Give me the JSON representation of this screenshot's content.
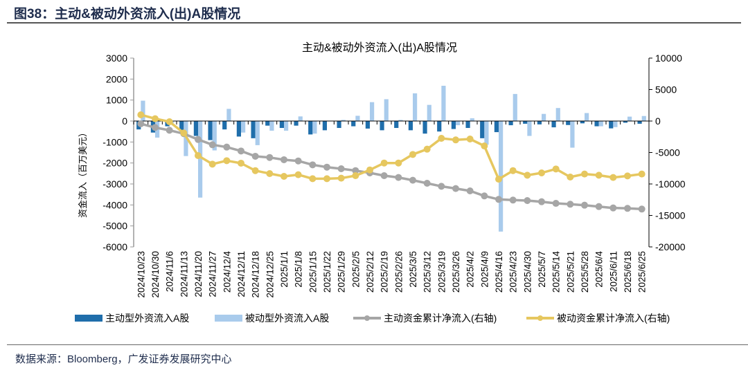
{
  "figure": {
    "label": "图38：主动&被动外资流入(出)A股情况",
    "source": "数据来源：Bloomberg，广发证券发展研究中心"
  },
  "chart_data": {
    "type": "bar+line",
    "title": "主动&被动外资流入(出)A股情况",
    "ylabel": "资金流入（百万美元）",
    "ylim": [
      -6000,
      3000
    ],
    "yticks": [
      3000,
      2000,
      1000,
      0,
      -1000,
      -2000,
      -3000,
      -4000,
      -5000,
      -6000
    ],
    "y2lim": [
      -20000,
      10000
    ],
    "y2ticks": [
      10000,
      5000,
      0,
      -5000,
      -10000,
      -15000,
      -20000
    ],
    "legend_position": "bottom",
    "grid": false,
    "categories": [
      "2024/10/23",
      "2024/10/30",
      "2024/11/6",
      "2024/11/13",
      "2024/11/20",
      "2024/11/27",
      "2024/12/4",
      "2024/12/11",
      "2024/12/18",
      "2024/12/25",
      "2025/1/1",
      "2025/1/8",
      "2025/1/15",
      "2025/1/22",
      "2025/1/29",
      "2025/2/5",
      "2025/2/12",
      "2025/2/19",
      "2025/2/26",
      "2025/3/5",
      "2025/3/12",
      "2025/3/19",
      "2025/3/26",
      "2025/4/2",
      "2025/4/9",
      "2025/4/16",
      "2025/4/23",
      "2025/4/30",
      "2025/5/7",
      "2025/5/14",
      "2025/5/21",
      "2025/5/28",
      "2025/6/4",
      "2025/6/11",
      "2025/6/18",
      "2025/6/25"
    ],
    "series": [
      {
        "name": "主动型外资流入A股",
        "type": "bar",
        "axis": "left",
        "color": "#1f6eab",
        "values": [
          -400,
          -550,
          -250,
          -440,
          -710,
          -910,
          -400,
          -740,
          -820,
          -220,
          -330,
          -220,
          -640,
          -440,
          -330,
          -250,
          -360,
          -440,
          -330,
          -440,
          -600,
          -500,
          -380,
          -330,
          -820,
          -530,
          -200,
          -130,
          -160,
          -300,
          -190,
          -110,
          -250,
          -350,
          -80,
          -130
        ]
      },
      {
        "name": "被动型外资流入A股",
        "type": "bar",
        "axis": "left",
        "color": "#a9cbec",
        "values": [
          970,
          -790,
          -100,
          -1670,
          -3650,
          -1400,
          580,
          -550,
          -1150,
          -460,
          -460,
          220,
          -600,
          0,
          55,
          250,
          900,
          1040,
          55,
          1320,
          770,
          1680,
          -200,
          130,
          -1130,
          -5270,
          1290,
          -710,
          340,
          620,
          -1270,
          380,
          -250,
          -290,
          210,
          240
        ]
      },
      {
        "name": "主动资金累计净流入(右轴)",
        "type": "line",
        "axis": "right",
        "color": "#a6a6a6",
        "values": [
          -440,
          -1030,
          -1470,
          -2010,
          -2930,
          -3770,
          -4140,
          -4760,
          -5600,
          -5790,
          -6150,
          -6340,
          -6960,
          -7330,
          -7580,
          -7880,
          -8240,
          -8680,
          -8970,
          -9410,
          -9890,
          -10370,
          -10730,
          -11100,
          -11900,
          -12450,
          -12560,
          -12640,
          -12820,
          -13080,
          -13220,
          -13370,
          -13590,
          -13810,
          -13880,
          -13990
        ]
      },
      {
        "name": "被动资金累计净流入(右轴)",
        "type": "line",
        "axis": "right",
        "color": "#e6c75f",
        "values": [
          990,
          370,
          -110,
          -1900,
          -5490,
          -6850,
          -6300,
          -6700,
          -7880,
          -8350,
          -8790,
          -8530,
          -9160,
          -9160,
          -9080,
          -8680,
          -7770,
          -6670,
          -6670,
          -5310,
          -4470,
          -2750,
          -3000,
          -2860,
          -3960,
          -9240,
          -7880,
          -8610,
          -8240,
          -7620,
          -8900,
          -8420,
          -8610,
          -8970,
          -8720,
          -8420
        ]
      }
    ]
  }
}
